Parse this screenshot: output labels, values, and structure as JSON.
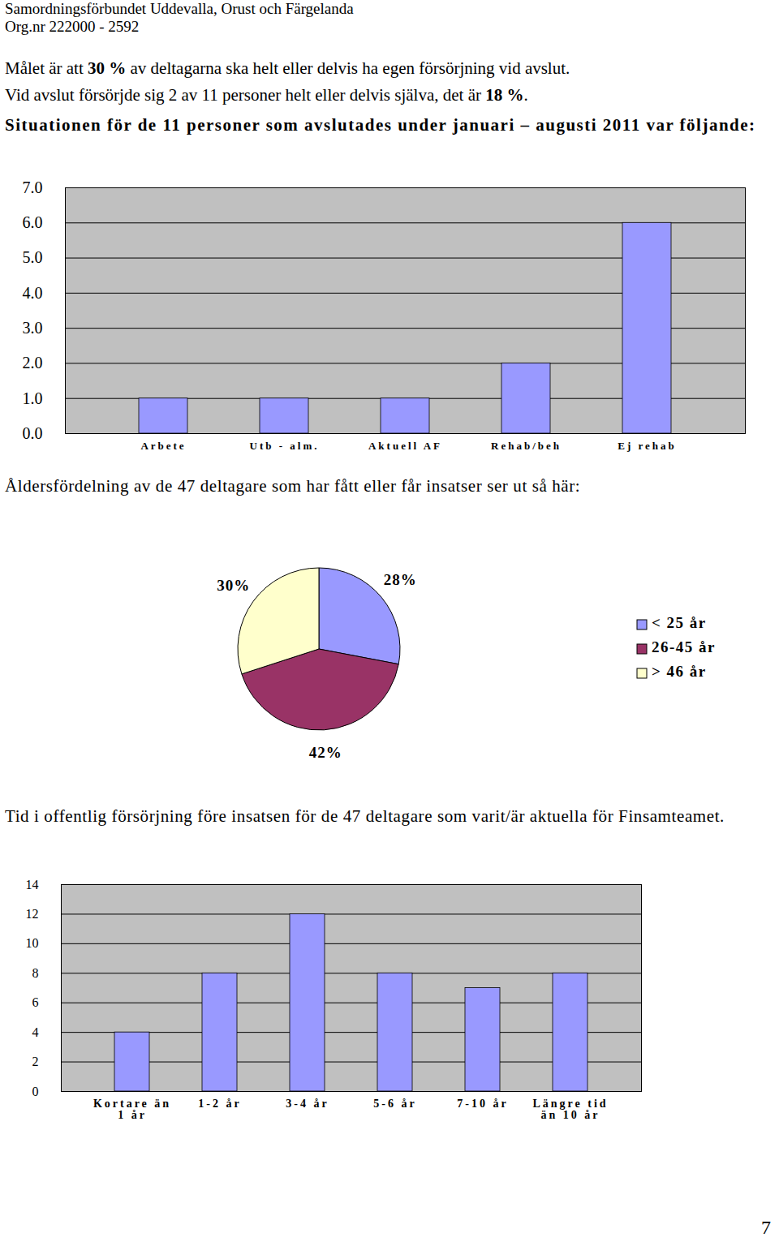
{
  "header": {
    "organisation": "Samordningsförbundet Uddevalla, Orust och Färgelanda",
    "org_nr": "Org.nr 222000 - 2592"
  },
  "paragraphs": [
    [
      {
        "text": "Målet är att "
      },
      {
        "text": "30 %",
        "bold": true
      },
      {
        "text": " av deltagarna ska helt eller delvis ha egen försörjning vid avslut."
      }
    ],
    [
      {
        "text": "Vid avslut försörjde sig 2 av 11 personer helt eller delvis själva, det är "
      },
      {
        "text": "18 %",
        "bold": true
      },
      {
        "text": "."
      }
    ]
  ],
  "chart_data": [
    {
      "type": "bar",
      "title": "Situationen för de 11 personer som avslutades under januari – augusti 2011 var följande:",
      "categories": [
        "Arbete",
        "Utb - alm.",
        "Aktuell AF",
        "Rehab/beh",
        "Ej rehab"
      ],
      "values": [
        1,
        1,
        1,
        2,
        6
      ],
      "color": "#9999ff",
      "ylim": [
        0,
        7
      ],
      "yticks": [
        0,
        1,
        2,
        3,
        4,
        5,
        6,
        7
      ],
      "grid": true
    },
    {
      "type": "pie",
      "title": "Åldersfördelning av de 47 deltagare som har fått eller får insatser ser ut så här:",
      "categories": [
        "< 25 år",
        "26-45 år",
        "> 46 år"
      ],
      "values": [
        28,
        42,
        30
      ],
      "value_labels": [
        "28%",
        "42%",
        "30%"
      ],
      "colors": [
        "#9999ff",
        "#993366",
        "#ffffcc"
      ],
      "data_labels": true,
      "legend": "right"
    },
    {
      "type": "bar",
      "title": "Tid i offentlig försörjning före insatsen för de 47 deltagare som varit/är aktuella för Finsamteamet.",
      "categories": [
        "Kortare än\n1 år",
        "1-2 år",
        "3-4 år",
        "5-6 år",
        "7-10 år",
        "Längre tid\nän 10 år"
      ],
      "values": [
        4,
        8,
        12,
        8,
        7,
        8
      ],
      "color": "#9999ff",
      "ylim": [
        0,
        14
      ],
      "yticks": [
        0,
        2,
        4,
        6,
        8,
        10,
        12,
        14
      ],
      "grid": true
    }
  ],
  "page_number": "7"
}
